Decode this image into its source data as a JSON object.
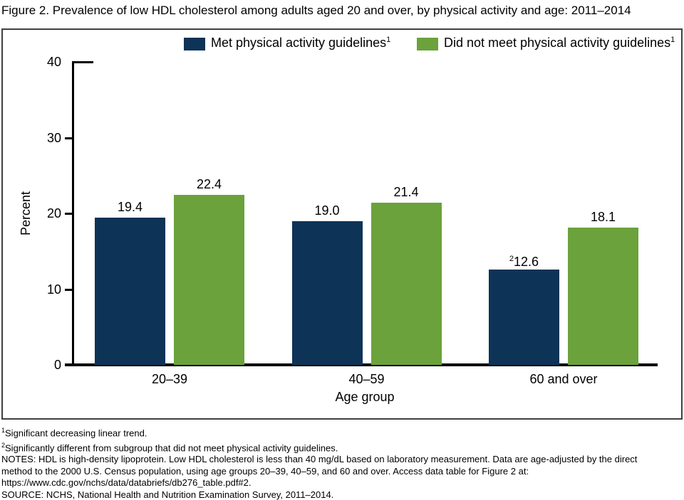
{
  "title": "Figure 2. Prevalence of low HDL cholesterol among adults aged 20 and over, by physical activity and age: 2011–2014",
  "colors": {
    "met_series": "#0d3356",
    "did_not_meet_series": "#6ba23b",
    "frame_border": "#404040",
    "axis": "#000000",
    "text": "#000000"
  },
  "legend": [
    {
      "label": "Met physical activity guidelines",
      "sup": "1"
    },
    {
      "label": "Did not meet physical activity guidelines",
      "sup": "1"
    }
  ],
  "chart_data": {
    "type": "bar",
    "title": "Figure 2. Prevalence of low HDL cholesterol among adults aged 20 and over, by physical activity and age: 2011–2014",
    "categories": [
      "20–39",
      "40–59",
      "60 and over"
    ],
    "series": [
      {
        "key": "met",
        "name": "Met physical activity guidelines",
        "color": "#0d3356",
        "values": [
          19.4,
          19.0,
          12.6
        ],
        "value_labels": [
          "19.4",
          "19.0",
          "12.6"
        ],
        "value_label_sups": [
          "",
          "",
          "2"
        ]
      },
      {
        "key": "did-not-meet",
        "name": "Did not meet physical activity guidelines",
        "color": "#6ba23b",
        "values": [
          22.4,
          21.4,
          18.1
        ],
        "value_labels": [
          "22.4",
          "21.4",
          "18.1"
        ],
        "value_label_sups": [
          "",
          "",
          ""
        ]
      }
    ],
    "xlabel": "Age group",
    "ylabel": "Percent",
    "ylim": [
      0,
      40
    ],
    "yticks": [
      0,
      10,
      20,
      30,
      40
    ],
    "grid": false,
    "legend_position": "top"
  },
  "footnotes": [
    {
      "sup": "1",
      "text": "Significant decreasing linear trend."
    },
    {
      "sup": "2",
      "text": "Significantly different from subgroup that did not meet physical activity guidelines."
    },
    {
      "sup": "",
      "text": "NOTES: HDL is high-density lipoprotein. Low HDL cholesterol is less than 40 mg/dL based on laboratory measurement. Data are age-adjusted by the direct"
    },
    {
      "sup": "",
      "text": "method to the 2000 U.S. Census population, using age groups 20–39, 40–59, and 60 and over. Access data table for Figure 2 at:"
    },
    {
      "sup": "",
      "text": "https://www.cdc.gov/nchs/data/databriefs/db276_table.pdf#2."
    },
    {
      "sup": "",
      "text": "SOURCE: NCHS, National Health and Nutrition Examination Survey, 2011–2014."
    }
  ]
}
